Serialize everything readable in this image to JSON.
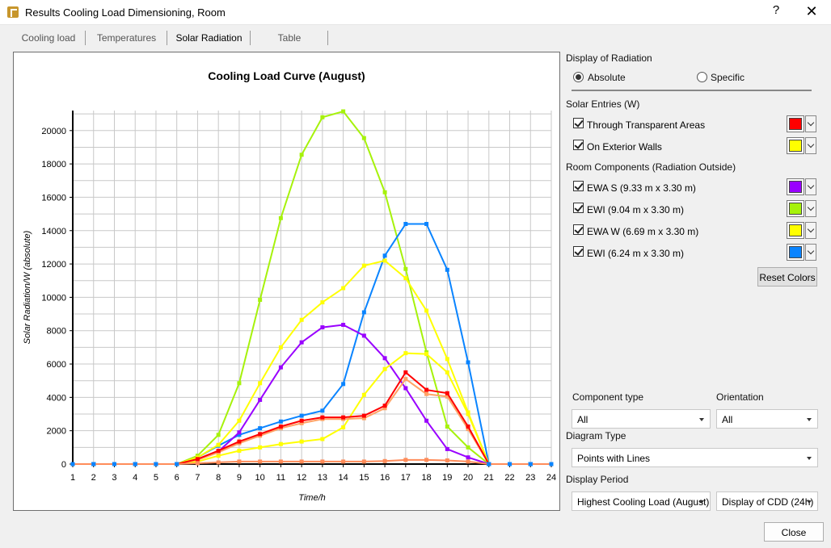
{
  "window": {
    "title": "Results Cooling Load Dimensioning, Room",
    "help": "?",
    "close_glyph": "✕"
  },
  "tabs": [
    {
      "label": "Cooling load"
    },
    {
      "label": "Temperatures"
    },
    {
      "label": "Solar Radiation",
      "active": true
    },
    {
      "label": "Table"
    }
  ],
  "display_radiation": {
    "heading": "Display of Radiation",
    "absolute_label": "Absolute",
    "specific_label": "Specific",
    "selected": "Absolute"
  },
  "solar_entries": {
    "heading": "Solar Entries (W)",
    "items": [
      {
        "label": "Through Transparent Areas",
        "checked": true,
        "color": "#ff0000"
      },
      {
        "label": "On Exterior Walls",
        "checked": true,
        "color": "#ffff00"
      }
    ]
  },
  "room_components": {
    "heading": "Room Components (Radiation Outside)",
    "items": [
      {
        "label": "EWA S (9.33 m x 3.30 m)",
        "checked": true,
        "color": "#9900ff"
      },
      {
        "label": "EWI (9.04 m x 3.30 m)",
        "checked": true,
        "color": "#a6f20b"
      },
      {
        "label": "EWA W (6.69 m x 3.30 m)",
        "checked": true,
        "color": "#ffff00"
      },
      {
        "label": "EWI (6.24 m x 3.30 m)",
        "checked": true,
        "color": "#0a84ff"
      }
    ]
  },
  "reset_colors_label": "Reset Colors",
  "filters": {
    "component_type_label": "Component type",
    "component_type_value": "All",
    "orientation_label": "Orientation",
    "orientation_value": "All",
    "diagram_type_label": "Diagram Type",
    "diagram_type_value": "Points with Lines",
    "display_period_label": "Display Period",
    "display_period_value": "Highest Cooling Load (August)",
    "display_cdd_value": "Display of CDD (24h)"
  },
  "close_label": "Close",
  "chart_data": {
    "type": "line",
    "title": "Cooling Load Curve (August)",
    "xlabel": "Time/h",
    "ylabel": "Solar Radiation/W (absolute)",
    "x": [
      1,
      2,
      3,
      4,
      5,
      6,
      7,
      8,
      9,
      10,
      11,
      12,
      13,
      14,
      15,
      16,
      17,
      18,
      19,
      20,
      21,
      22,
      23,
      24
    ],
    "xlim": [
      1,
      24
    ],
    "ylim": [
      0,
      21200
    ],
    "yticks": [
      0,
      2000,
      4000,
      6000,
      8000,
      10000,
      12000,
      14000,
      16000,
      18000,
      20000
    ],
    "grid": true,
    "series": [
      {
        "color": "#a6f20b",
        "values": [
          0,
          0,
          0,
          0,
          0,
          0,
          500,
          1750,
          4850,
          9850,
          14750,
          18550,
          20800,
          21150,
          19550,
          16300,
          11700,
          6700,
          2250,
          1000,
          0,
          0,
          0,
          0
        ]
      },
      {
        "color": "#0a84ff",
        "values": [
          0,
          0,
          0,
          0,
          0,
          0,
          400,
          1100,
          1750,
          2150,
          2550,
          2900,
          3200,
          4800,
          9100,
          12500,
          14400,
          14400,
          11650,
          6100,
          0,
          0,
          0,
          0
        ]
      },
      {
        "color": "#9900ff",
        "values": [
          0,
          0,
          0,
          0,
          0,
          0,
          250,
          750,
          1900,
          3850,
          5800,
          7300,
          8200,
          8350,
          7700,
          6350,
          4550,
          2600,
          900,
          400,
          0,
          0,
          0,
          0
        ]
      },
      {
        "color": "#ffff00",
        "values": [
          0,
          0,
          0,
          0,
          0,
          0,
          400,
          1150,
          2600,
          4850,
          7000,
          8650,
          9700,
          10550,
          11900,
          12200,
          11150,
          9200,
          6300,
          3100,
          0,
          0,
          0,
          0
        ]
      },
      {
        "color": "#ffff00",
        "values": [
          0,
          0,
          0,
          0,
          0,
          0,
          150,
          500,
          800,
          1000,
          1200,
          1350,
          1500,
          2200,
          4150,
          5700,
          6650,
          6600,
          5500,
          3000,
          0,
          0,
          0,
          0
        ]
      },
      {
        "color": "#ffa366",
        "values": [
          0,
          0,
          0,
          0,
          0,
          0,
          250,
          700,
          1250,
          1700,
          2150,
          2450,
          2700,
          2700,
          2750,
          3350,
          5100,
          4200,
          4050,
          2100,
          0,
          0,
          0,
          0
        ]
      },
      {
        "color": "#ff0000",
        "values": [
          0,
          0,
          0,
          0,
          0,
          0,
          300,
          800,
          1350,
          1800,
          2250,
          2600,
          2800,
          2800,
          2900,
          3500,
          5500,
          4450,
          4250,
          2250,
          0,
          0,
          0,
          0
        ]
      },
      {
        "color": "#ff8c5a",
        "values": [
          0,
          0,
          0,
          0,
          0,
          0,
          50,
          100,
          150,
          150,
          150,
          150,
          150,
          150,
          150,
          180,
          250,
          250,
          220,
          150,
          0,
          0,
          0,
          0
        ]
      }
    ]
  }
}
